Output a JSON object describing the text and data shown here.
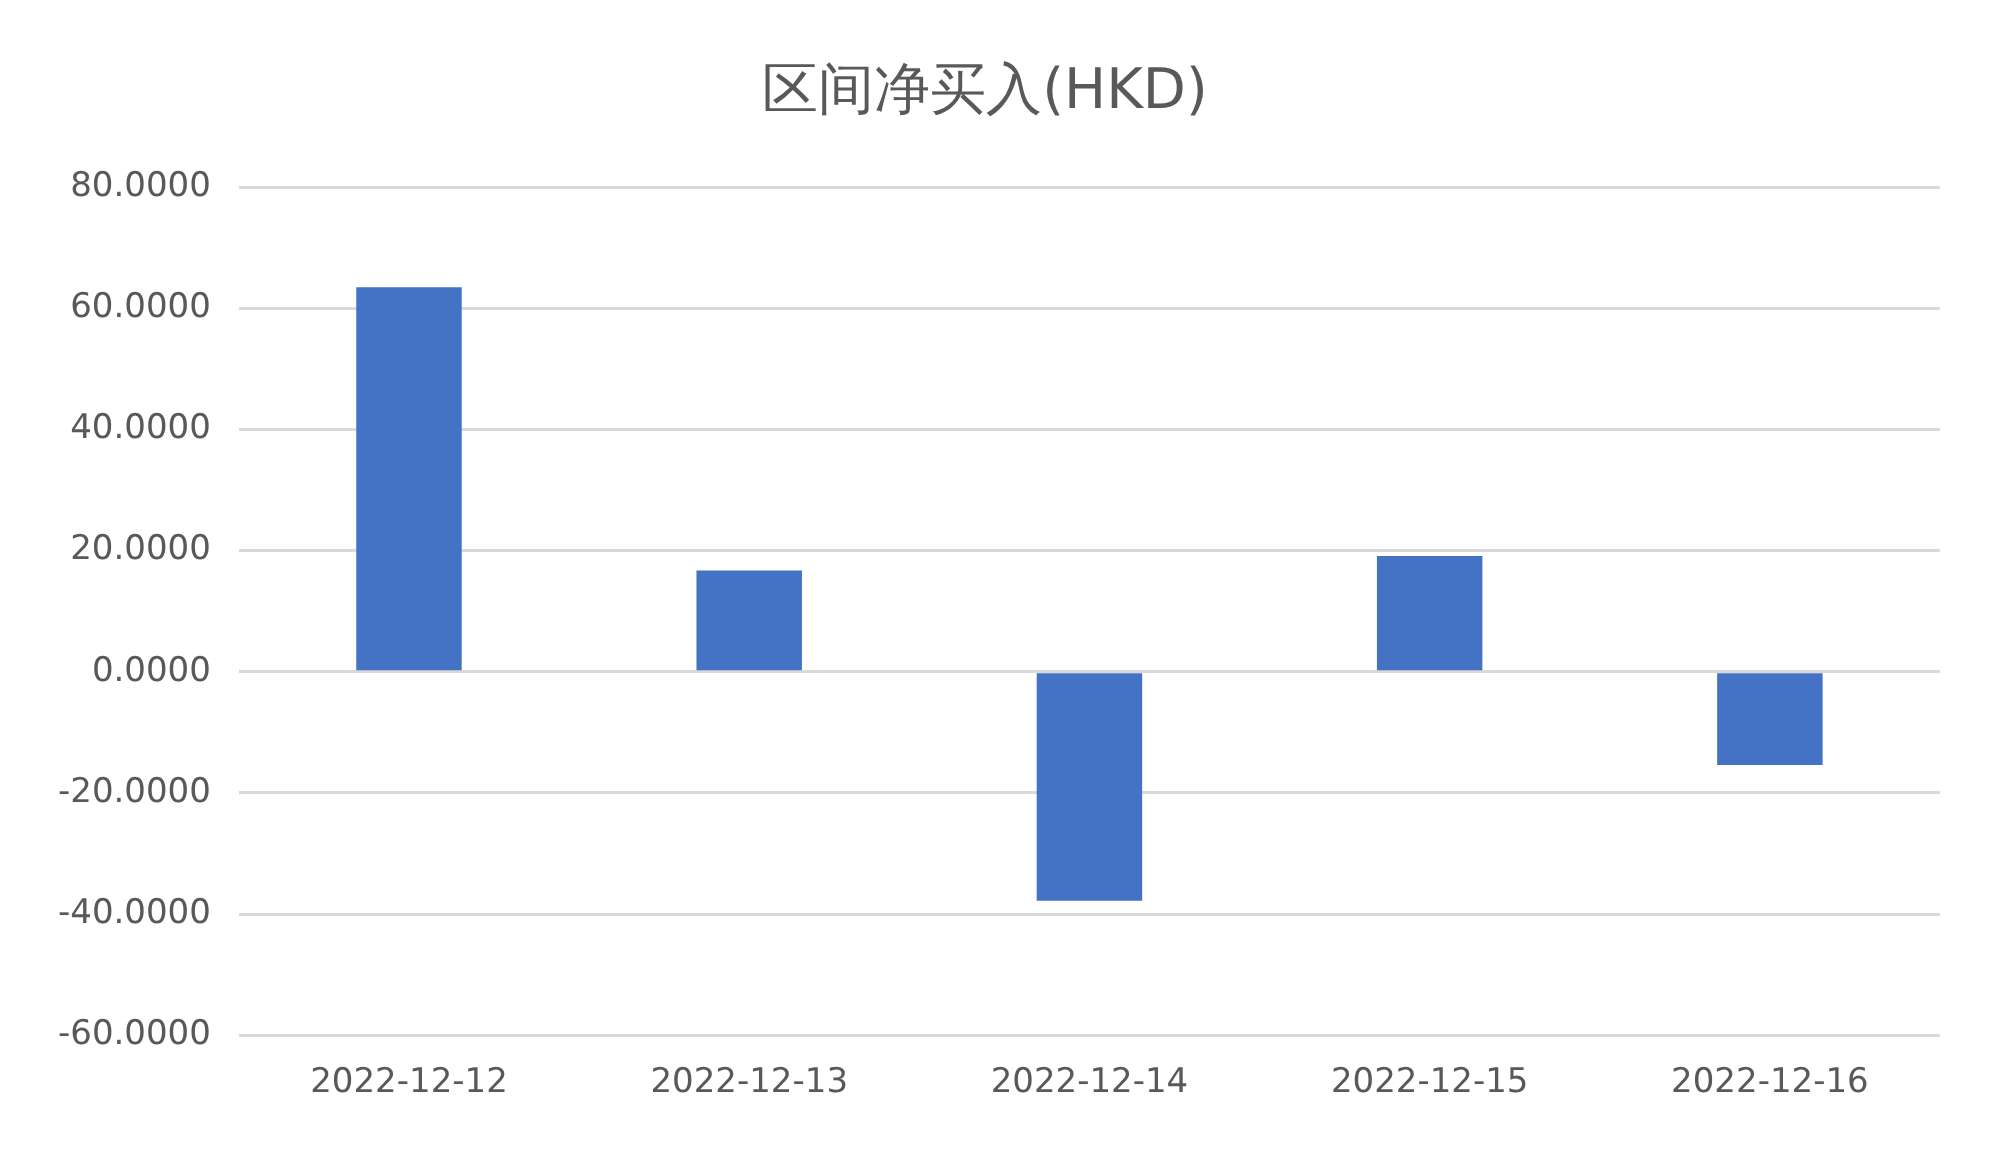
{
  "chart_data": {
    "type": "bar",
    "title": "区间净买入(HKD)",
    "categories": [
      "2022-12-12",
      "2022-12-13",
      "2022-12-14",
      "2022-12-15",
      "2022-12-16"
    ],
    "values": [
      63.5,
      16.7,
      -37.8,
      19.1,
      -15.4
    ],
    "color": "#4472c4",
    "ylim": [
      -60,
      80
    ],
    "yticks": [
      {
        "value": -60,
        "label": "-60.0000"
      },
      {
        "value": -40,
        "label": "-40.0000"
      },
      {
        "value": -20,
        "label": "-20.0000"
      },
      {
        "value": 0,
        "label": "0.0000"
      },
      {
        "value": 20,
        "label": "20.0000"
      },
      {
        "value": 40,
        "label": "40.0000"
      },
      {
        "value": 60,
        "label": "60.0000"
      },
      {
        "value": 80,
        "label": "80.0000"
      }
    ],
    "grid": "y"
  }
}
